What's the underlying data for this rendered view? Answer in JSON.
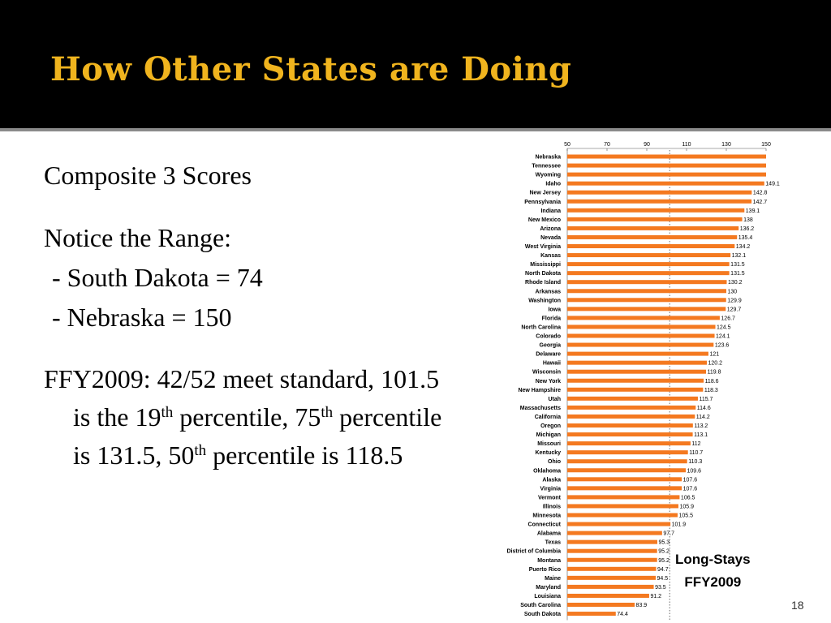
{
  "slide": {
    "title": "How Other States are Doing",
    "number": "18"
  },
  "body": {
    "heading": "Composite 3 Scores",
    "range_heading": "Notice the Range:",
    "range_low": " - South Dakota = 74",
    "range_high": " - Nebraska = 150",
    "ffy_text1": "FFY2009: 42/52 meet standard, 101.5 is the 19",
    "ffy_sup1": "th",
    "ffy_text2": " percentile, 75",
    "ffy_sup2": "th",
    "ffy_text3": " percentile is 131.5, 50",
    "ffy_sup3": "th",
    "ffy_text4": " percentile is 118.5"
  },
  "caption": {
    "line1": "Long-Stays",
    "line2": "FFY2009"
  },
  "chart_data": {
    "type": "bar",
    "orientation": "horizontal",
    "xlim": [
      50,
      150
    ],
    "xticks": [
      50,
      70,
      90,
      110,
      130,
      150
    ],
    "reference_line": 101.5,
    "bar_color": "#f47920",
    "categories": [
      "Nebraska",
      "Tennessee",
      "Wyoming",
      "Idaho",
      "New Jersey",
      "Pennsylvania",
      "Indiana",
      "New Mexico",
      "Arizona",
      "Nevada",
      "West Virginia",
      "Kansas",
      "Mississippi",
      "North Dakota",
      "Rhode Island",
      "Arkansas",
      "Washington",
      "Iowa",
      "Florida",
      "North Carolina",
      "Colorado",
      "Georgia",
      "Delaware",
      "Hawaii",
      "Wisconsin",
      "New York",
      "New Hampshire",
      "Utah",
      "Massachusetts",
      "California",
      "Oregon",
      "Michigan",
      "Missouri",
      "Kentucky",
      "Ohio",
      "Oklahoma",
      "Alaska",
      "Virginia",
      "Vermont",
      "Illinois",
      "Minnesota",
      "Connecticut",
      "Alabama",
      "Texas",
      "District of Columbia",
      "Montana",
      "Puerto Rico",
      "Maine",
      "Maryland",
      "Louisiana",
      "South Carolina",
      "South Dakota"
    ],
    "values": [
      150,
      150,
      150,
      149.1,
      142.8,
      142.7,
      139.1,
      138,
      136.2,
      135.4,
      134.2,
      132.1,
      131.5,
      131.5,
      130.2,
      130,
      129.9,
      129.7,
      126.7,
      124.5,
      124.1,
      123.6,
      121,
      120.2,
      119.8,
      118.6,
      118.3,
      115.7,
      114.6,
      114.2,
      113.2,
      113.1,
      112,
      110.7,
      110.3,
      109.6,
      107.6,
      107.6,
      106.5,
      105.9,
      105.5,
      101.9,
      97.7,
      95.3,
      95.2,
      95.2,
      94.7,
      94.5,
      93.5,
      91.2,
      83.9,
      74.4
    ],
    "data_labels": [
      null,
      null,
      null,
      "149.1",
      "142.8",
      "142.7",
      "139.1",
      "138",
      "136.2",
      "135.4",
      "134.2",
      "132.1",
      "131.5",
      "131.5",
      "130.2",
      "130",
      "129.9",
      "129.7",
      "126.7",
      "124.5",
      "124.1",
      "123.6",
      "121",
      "120.2",
      "119.8",
      "118.6",
      "118.3",
      "115.7",
      "114.6",
      "114.2",
      "113.2",
      "113.1",
      "112",
      "110.7",
      "110.3",
      "109.6",
      "107.6",
      "107.6",
      "106.5",
      "105.9",
      "105.5",
      "101.9",
      "97.7",
      "95.3",
      "95.2",
      "95.2",
      "94.7",
      "94.5",
      "93.5",
      "91.2",
      "83.9",
      "74.4"
    ]
  }
}
